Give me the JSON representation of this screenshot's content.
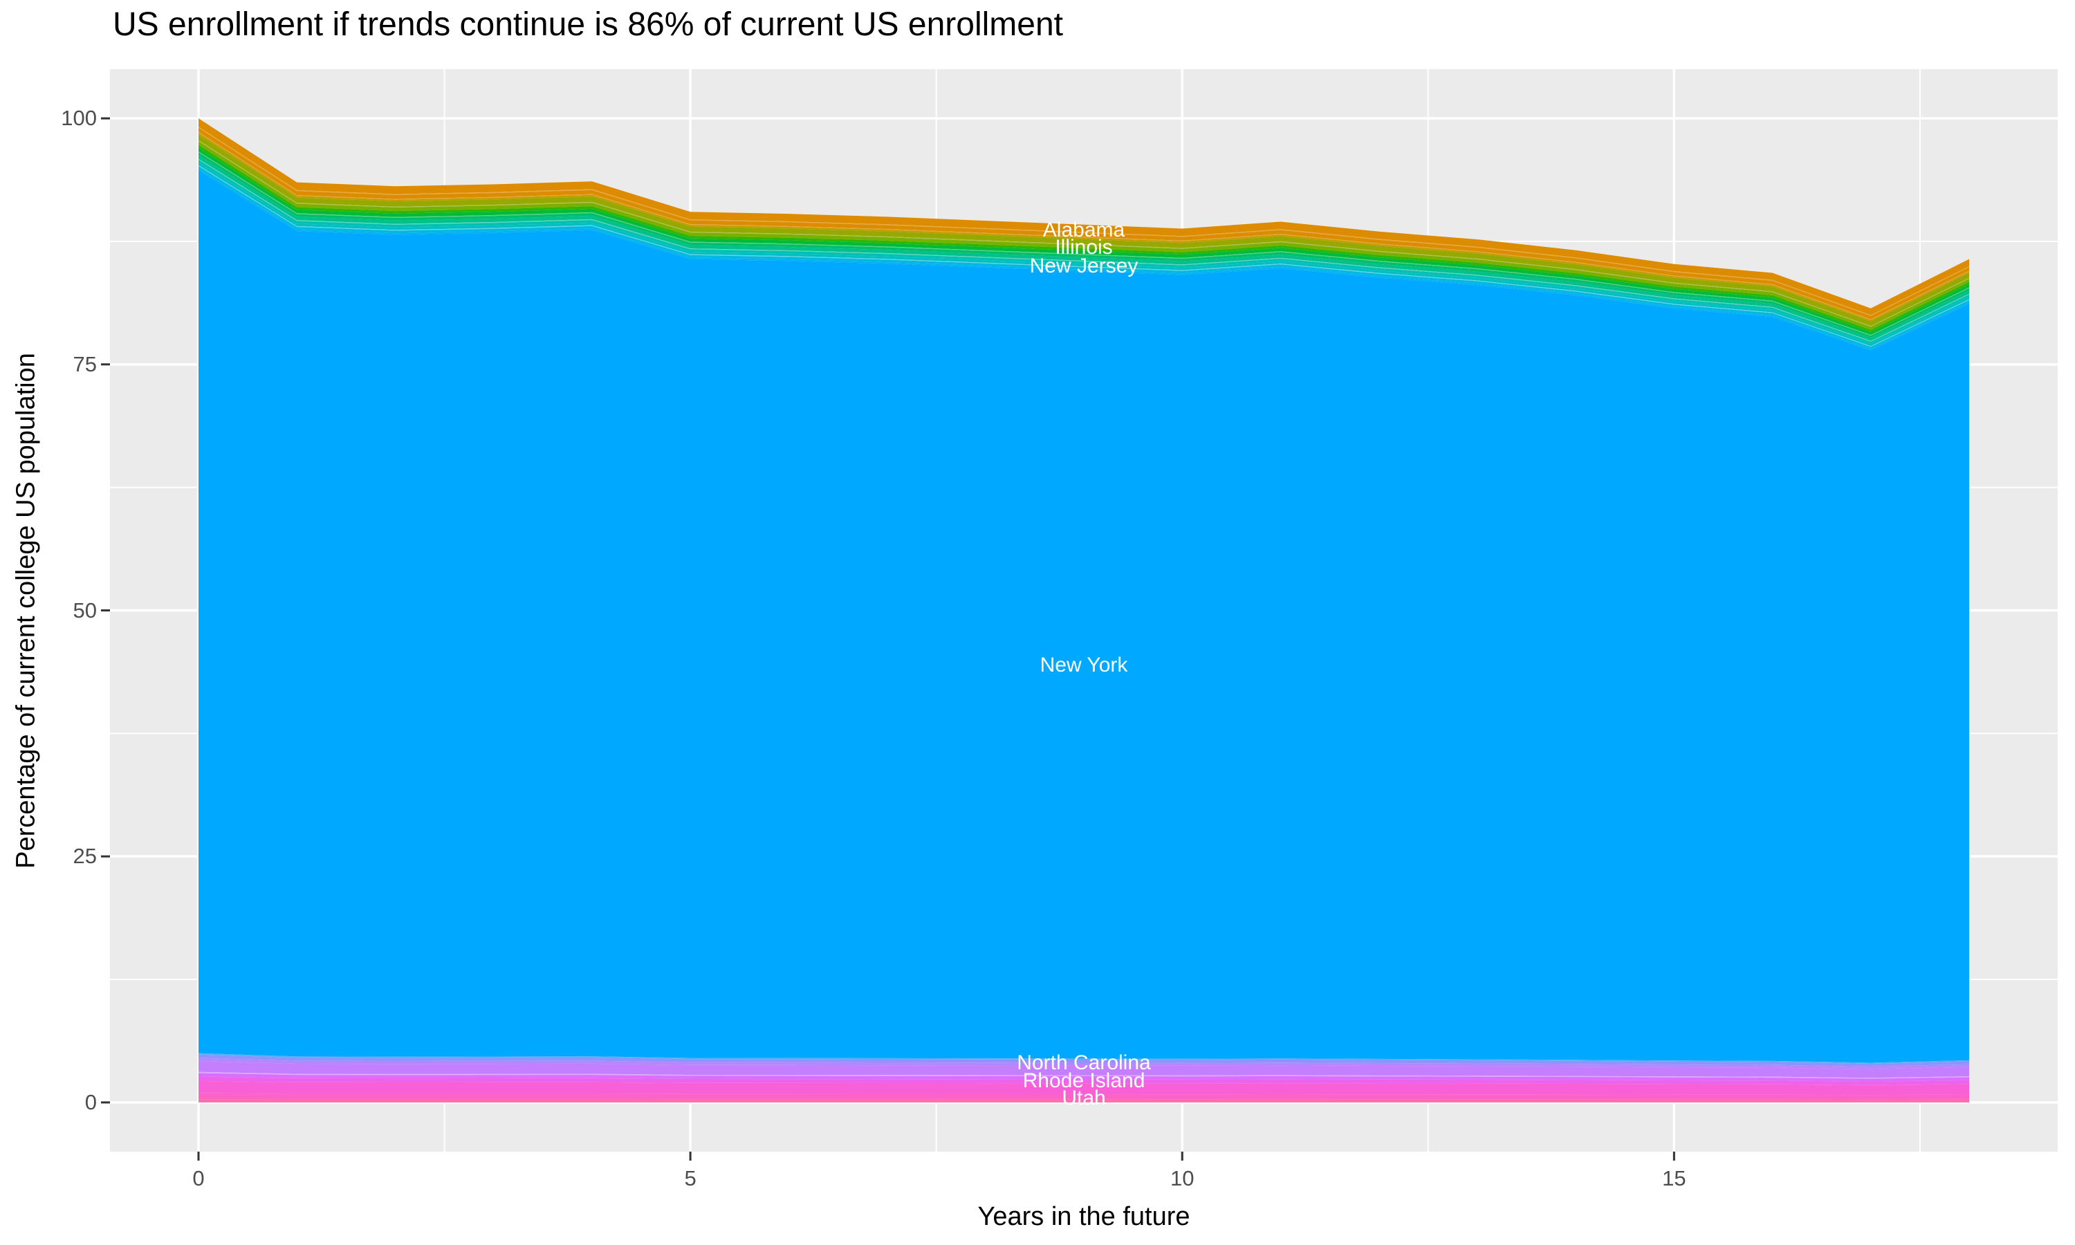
{
  "chart_data": {
    "type": "area",
    "stacked": true,
    "title": "US enrollment if trends continue is 86% of current US enrollment",
    "xlabel": "Years in the future",
    "ylabel": "Percentage of current college US population",
    "x": [
      0,
      1,
      2,
      3,
      4,
      5,
      6,
      7,
      8,
      9,
      10,
      11,
      12,
      13,
      14,
      15,
      16,
      17,
      18
    ],
    "total_top_boundary_pct": [
      100,
      93.5,
      93.1,
      93.3,
      93.6,
      90.5,
      90.3,
      90.0,
      89.6,
      89.2,
      88.8,
      89.5,
      88.5,
      87.7,
      86.6,
      85.2,
      84.3,
      80.7,
      85.7
    ],
    "xlim": [
      0,
      18
    ],
    "ylim": [
      0,
      100
    ],
    "x_ticks": [
      {
        "value": 0,
        "label": "0"
      },
      {
        "value": 5,
        "label": "5"
      },
      {
        "value": 10,
        "label": "10"
      },
      {
        "value": 15,
        "label": "15"
      }
    ],
    "y_ticks": [
      {
        "value": 100,
        "label": "100"
      },
      {
        "value": 75,
        "label": "75"
      },
      {
        "value": 50,
        "label": "50"
      },
      {
        "value": 25,
        "label": "25"
      },
      {
        "value": 0,
        "label": "0"
      }
    ],
    "x_minor_ticks": [
      2.5,
      7.5,
      12.5,
      17.5
    ],
    "y_minor_ticks": [
      12.5,
      37.5,
      62.5,
      87.5
    ],
    "grid": true,
    "legend": "none",
    "bands_top_to_bottom": [
      {
        "color": "#DD8B00",
        "fraction_of_total": 0.0085
      },
      {
        "color": "#E7A83A",
        "fraction_of_total": 0.001
      },
      {
        "color": "#DC8C00",
        "fraction_of_total": 0.0043
      },
      {
        "color": "#E2A42E",
        "fraction_of_total": 0.0009
      },
      {
        "color": "#C59C00",
        "fraction_of_total": 0.0018
      },
      {
        "color": "#96A900",
        "fraction_of_total": 0.0058
      },
      {
        "color": "#AFC14D",
        "fraction_of_total": 0.0009
      },
      {
        "color": "#7CB000",
        "fraction_of_total": 0.0038
      },
      {
        "color": "#2FB600",
        "fraction_of_total": 0.0028
      },
      {
        "color": "#00BA38",
        "fraction_of_total": 0.0038
      },
      {
        "color": "#52D286",
        "fraction_of_total": 0.0009
      },
      {
        "color": "#00BD68",
        "fraction_of_total": 0.0028
      },
      {
        "color": "#00C08B",
        "fraction_of_total": 0.0038
      },
      {
        "color": "#5ED7BC",
        "fraction_of_total": 0.0009
      },
      {
        "color": "#00C0B2",
        "fraction_of_total": 0.0028
      },
      {
        "color": "#00BFC4",
        "fraction_of_total": 0.0028
      },
      {
        "color": "#5FD7E2",
        "fraction_of_total": 0.0009
      },
      {
        "color": "#00B8E0",
        "fraction_of_total": 0.0028
      },
      {
        "color": "#00B1F5",
        "fraction_of_total": 0.0017
      },
      {
        "color": "#00A8FF",
        "fraction_of_total": 0.897
      },
      {
        "color": "#55AEF8",
        "fraction_of_total": 0.0013
      },
      {
        "color": "#8C95FF",
        "fraction_of_total": 0.0035
      },
      {
        "color": "#B388FF",
        "fraction_of_total": 0.0032
      },
      {
        "color": "#C47FFF",
        "fraction_of_total": 0.011
      },
      {
        "color": "#DDA8FF",
        "fraction_of_total": 0.0012
      },
      {
        "color": "#D96EFF",
        "fraction_of_total": 0.0035
      },
      {
        "color": "#ED64EC",
        "fraction_of_total": 0.0045
      },
      {
        "color": "#F860D8",
        "fraction_of_total": 0.0125
      },
      {
        "color": "#FB63C6",
        "fraction_of_total": 0.006
      },
      {
        "color": "#FF6CAC",
        "fraction_of_total": 0.0033
      }
    ],
    "state_labels": [
      {
        "text": "Alabama",
        "x": 9,
        "y_pct": 88.6
      },
      {
        "text": "Illinois",
        "x": 9,
        "y_pct": 86.9
      },
      {
        "text": "New Jersey",
        "x": 9,
        "y_pct": 85.0
      },
      {
        "text": "New York",
        "x": 9,
        "y_pct": 44.4
      },
      {
        "text": "North Carolina",
        "x": 9,
        "y_pct": 4.0
      },
      {
        "text": "Rhode Island",
        "x": 9,
        "y_pct": 2.2
      },
      {
        "text": "Utah",
        "x": 9,
        "y_pct": 0.4
      }
    ],
    "colors": {
      "background": "#FFFFFF",
      "panel_bg": "#EBEBEB",
      "grid": "#FFFFFF",
      "tick": "#333333",
      "axis_text": "#4D4D4D",
      "title_text": "#000000",
      "label_text": "#FFFFFF"
    }
  }
}
